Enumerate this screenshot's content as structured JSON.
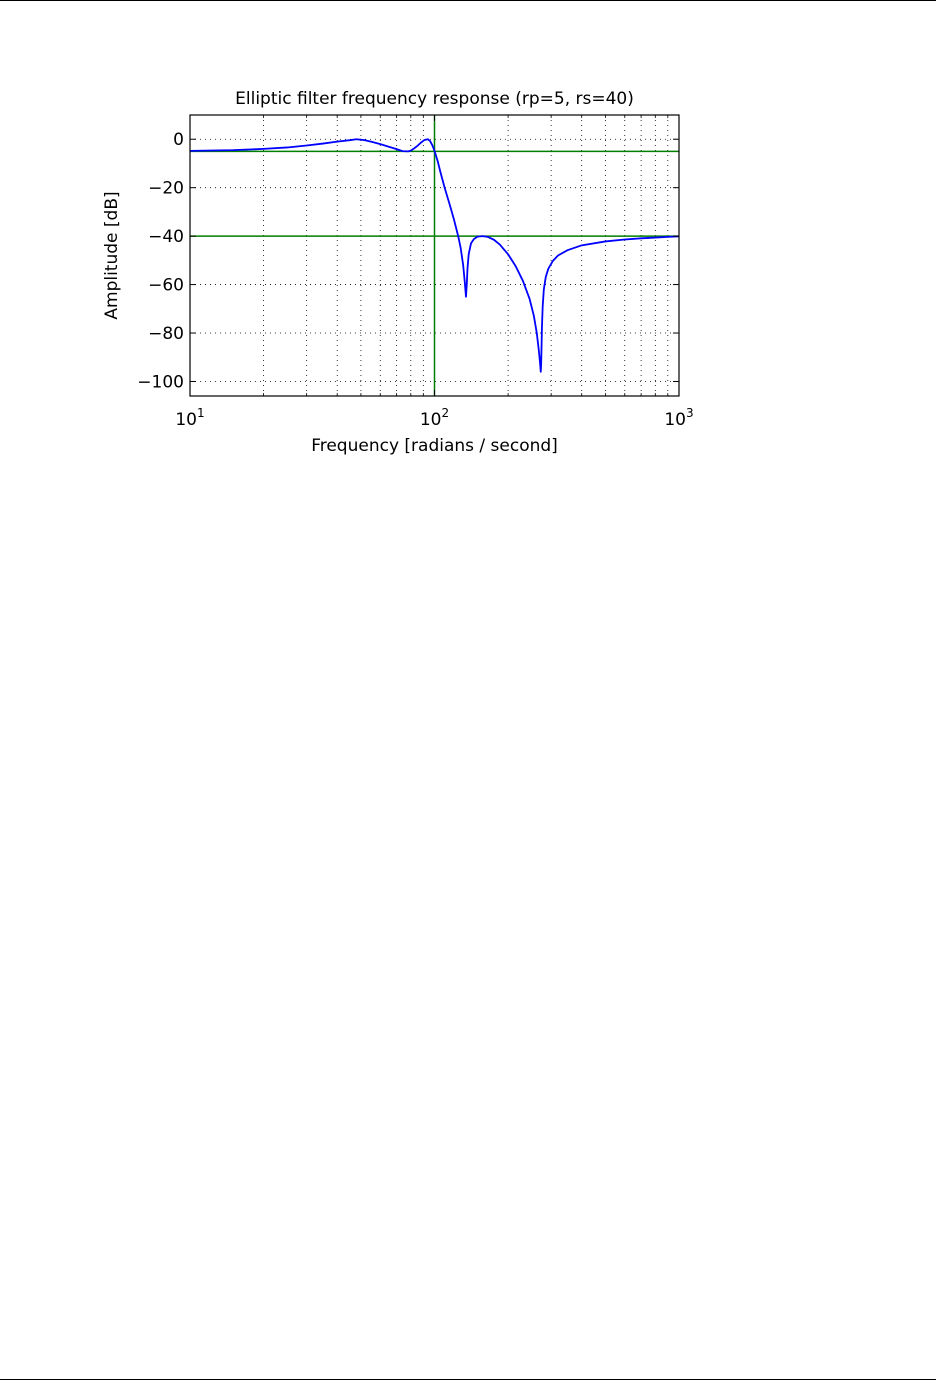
{
  "chart_data": {
    "type": "line",
    "title": "Elliptic filter frequency response (rp=5, rs=40)",
    "xlabel": "Frequency [radians / second]",
    "ylabel": "Amplitude [dB]",
    "xscale": "log",
    "xlim": [
      10,
      1000
    ],
    "ylim": [
      -106,
      10
    ],
    "grid": true,
    "x_ticks": [
      {
        "base": "10",
        "exp": "1",
        "value": 10
      },
      {
        "base": "10",
        "exp": "2",
        "value": 100
      },
      {
        "base": "10",
        "exp": "3",
        "value": 1000
      }
    ],
    "y_ticks": [
      {
        "label": "0",
        "value": 0
      },
      {
        "label": "−20",
        "value": -20
      },
      {
        "label": "−40",
        "value": -40
      },
      {
        "label": "−60",
        "value": -60
      },
      {
        "label": "−80",
        "value": -80
      },
      {
        "label": "−100",
        "value": -100
      }
    ],
    "reference_lines": {
      "horizontal": [
        -5,
        -40
      ],
      "vertical": [
        100
      ],
      "color": "#007f00"
    },
    "series": [
      {
        "color": "#0000ff",
        "x": [
          10,
          15,
          20,
          25,
          30,
          35,
          40,
          45,
          48,
          52,
          56,
          60,
          65,
          70,
          74,
          78,
          80,
          82,
          85,
          88,
          91,
          94,
          96,
          98,
          100,
          103,
          106,
          110,
          115,
          120,
          125,
          128,
          131,
          133,
          134.5,
          135.5,
          136.5,
          138,
          141,
          145,
          150,
          157,
          165,
          175,
          185,
          200,
          215,
          230,
          245,
          255,
          262,
          267,
          270,
          272,
          273,
          274,
          275,
          277,
          280,
          285,
          292,
          305,
          320,
          350,
          400,
          500,
          600,
          700,
          800,
          900,
          1000
        ],
        "y": [
          -4.8,
          -4.5,
          -4.0,
          -3.4,
          -2.6,
          -1.8,
          -1.0,
          -0.4,
          0.0,
          -0.4,
          -1.2,
          -2.0,
          -3.1,
          -4.1,
          -4.9,
          -5.0,
          -4.7,
          -4.0,
          -2.8,
          -1.4,
          -0.3,
          0.0,
          -0.8,
          -2.5,
          -4.8,
          -9.0,
          -14.0,
          -20.0,
          -26.5,
          -33.0,
          -40.0,
          -45.0,
          -52.0,
          -59.0,
          -65.0,
          -60.0,
          -53.0,
          -47.5,
          -43.0,
          -41.2,
          -40.2,
          -40.0,
          -40.3,
          -41.5,
          -43.5,
          -47.5,
          -52.5,
          -58.5,
          -66.0,
          -73.0,
          -80.0,
          -87.0,
          -92.0,
          -96.0,
          -93.0,
          -86.0,
          -78.0,
          -69.0,
          -62.0,
          -57.0,
          -53.5,
          -50.2,
          -48.0,
          -45.8,
          -43.8,
          -42.2,
          -41.4,
          -40.9,
          -40.6,
          -40.3,
          -40.1
        ]
      }
    ]
  }
}
